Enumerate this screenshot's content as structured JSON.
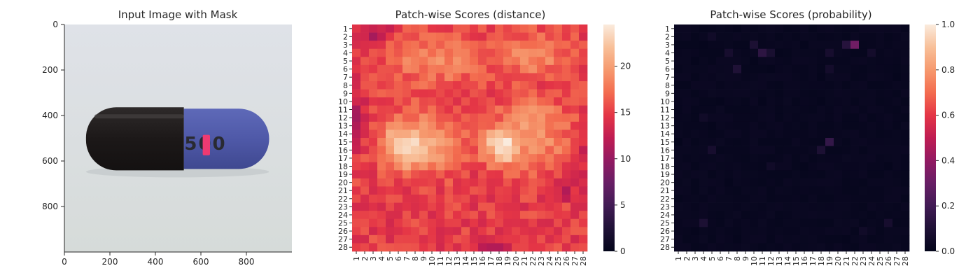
{
  "chart_data": [
    {
      "type": "image",
      "title": "Input Image with Mask",
      "x_ticks": [
        0,
        200,
        400,
        600,
        800
      ],
      "y_ticks": [
        0,
        200,
        400,
        600,
        800
      ],
      "xlim": [
        0,
        1000
      ],
      "ylim": [
        0,
        1000
      ],
      "capsule": {
        "x_range": [
          95,
          900
        ],
        "y_range": [
          370,
          635
        ],
        "split_x": 525,
        "left_color": "#1c1818",
        "right_color": "#4f59a8",
        "printed_text": "500"
      },
      "mask": {
        "x": [
          608,
          640
        ],
        "y": [
          485,
          575
        ],
        "color": "#ee3a72"
      }
    },
    {
      "type": "heatmap",
      "title": "Patch-wise Scores (distance)",
      "rows": 28,
      "cols": 28,
      "x_ticks": [
        "1",
        "2",
        "3",
        "4",
        "5",
        "6",
        "7",
        "8",
        "9",
        "10",
        "11",
        "12",
        "13",
        "14",
        "15",
        "16",
        "17",
        "18",
        "19",
        "20",
        "21",
        "22",
        "23",
        "24",
        "25",
        "26",
        "27",
        "28"
      ],
      "y_ticks": [
        "1",
        "2",
        "3",
        "4",
        "5",
        "6",
        "7",
        "8",
        "9",
        "10",
        "11",
        "12",
        "13",
        "14",
        "15",
        "16",
        "17",
        "18",
        "19",
        "20",
        "21",
        "22",
        "23",
        "24",
        "25",
        "26",
        "27",
        "28"
      ],
      "colorbar_ticks": [
        0,
        5,
        10,
        15,
        20
      ],
      "vmin": 0,
      "vmax": 24.5,
      "colormap": "rocket",
      "base": 15,
      "features": [
        {
          "r": 15.5,
          "c": 18.3,
          "amp": 8.5,
          "sr": 1.6,
          "sc": 1.4
        },
        {
          "r": 15.2,
          "c": 9.0,
          "amp": 5.5,
          "sr": 2.5,
          "sc": 3.0
        },
        {
          "r": 15.6,
          "c": 6.2,
          "amp": 5.0,
          "sr": 1.8,
          "sc": 1.6
        },
        {
          "r": 15.0,
          "c": 22.5,
          "amp": 3.5,
          "sr": 2.5,
          "sc": 3.5
        },
        {
          "r": 4.2,
          "c": 22.0,
          "amp": 4.0,
          "sr": 1.8,
          "sc": 3.0
        },
        {
          "r": 5.0,
          "c": 10.0,
          "amp": 3.5,
          "sr": 2.2,
          "sc": 4.0
        },
        {
          "r": 11.5,
          "c": 22.0,
          "amp": 2.5,
          "sr": 1.5,
          "sc": 2.5
        },
        {
          "r": 1.5,
          "c": 3.5,
          "amp": -4.0,
          "sr": 0.9,
          "sc": 1.2
        },
        {
          "r": 28.3,
          "c": 17.0,
          "amp": -5.0,
          "sr": 0.8,
          "sc": 1.5
        },
        {
          "r": 12.0,
          "c": 1.0,
          "amp": -3.0,
          "sr": 2.5,
          "sc": 0.9
        },
        {
          "r": 16.5,
          "c": 28.0,
          "amp": -3.0,
          "sr": 2.0,
          "sc": 0.9
        },
        {
          "r": 21.0,
          "c": 26.0,
          "amp": -3.0,
          "sr": 0.8,
          "sc": 0.8
        }
      ]
    },
    {
      "type": "heatmap",
      "title": "Patch-wise Scores (probability)",
      "rows": 28,
      "cols": 28,
      "x_ticks": [
        "1",
        "2",
        "3",
        "4",
        "5",
        "6",
        "7",
        "8",
        "9",
        "10",
        "11",
        "12",
        "13",
        "14",
        "15",
        "16",
        "17",
        "18",
        "19",
        "20",
        "21",
        "22",
        "23",
        "24",
        "25",
        "26",
        "27",
        "28"
      ],
      "y_ticks": [
        "1",
        "2",
        "3",
        "4",
        "5",
        "6",
        "7",
        "8",
        "9",
        "10",
        "11",
        "12",
        "13",
        "14",
        "15",
        "16",
        "17",
        "18",
        "19",
        "20",
        "21",
        "22",
        "23",
        "24",
        "25",
        "26",
        "27",
        "28"
      ],
      "colorbar_ticks": [
        "0.0",
        "0.2",
        "0.4",
        "0.6",
        "0.8",
        "1.0"
      ],
      "vmin": 0,
      "vmax": 1,
      "colormap": "rocket",
      "base": 0.02,
      "hotspots": [
        {
          "r": 3,
          "c": 22,
          "v": 0.32
        },
        {
          "r": 3,
          "c": 21,
          "v": 0.12
        },
        {
          "r": 4,
          "c": 11,
          "v": 0.14
        },
        {
          "r": 3,
          "c": 10,
          "v": 0.09
        },
        {
          "r": 4,
          "c": 12,
          "v": 0.08
        },
        {
          "r": 4,
          "c": 7,
          "v": 0.07
        },
        {
          "r": 6,
          "c": 8,
          "v": 0.1
        },
        {
          "r": 4,
          "c": 19,
          "v": 0.07
        },
        {
          "r": 6,
          "c": 19,
          "v": 0.06
        },
        {
          "r": 15,
          "c": 19,
          "v": 0.16
        },
        {
          "r": 16,
          "c": 18,
          "v": 0.09
        },
        {
          "r": 16,
          "c": 5,
          "v": 0.07
        },
        {
          "r": 25,
          "c": 4,
          "v": 0.09
        },
        {
          "r": 25,
          "c": 26,
          "v": 0.07
        },
        {
          "r": 12,
          "c": 4,
          "v": 0.05
        },
        {
          "r": 18,
          "c": 12,
          "v": 0.05
        },
        {
          "r": 4,
          "c": 24,
          "v": 0.06
        },
        {
          "r": 2,
          "c": 5,
          "v": 0.05
        },
        {
          "r": 26,
          "c": 23,
          "v": 0.05
        }
      ]
    }
  ]
}
